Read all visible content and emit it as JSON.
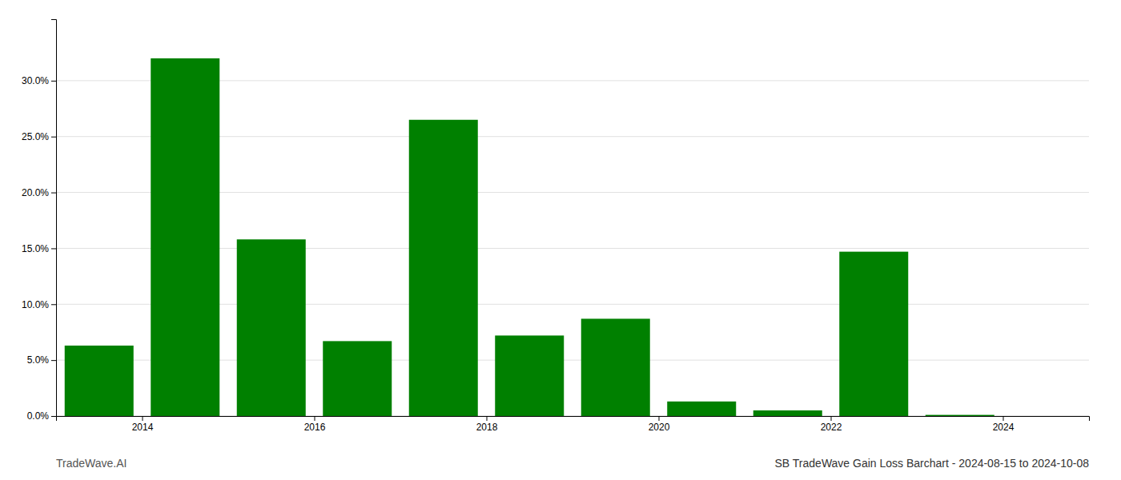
{
  "chart_data": {
    "type": "bar",
    "title": "SB TradeWave Gain Loss Barchart - 2024-08-15 to 2024-10-08",
    "annotations": [
      "TradeWave.AI"
    ],
    "x": [
      2014,
      2015,
      2016,
      2017,
      2018,
      2019,
      2020,
      2021,
      2022,
      2023,
      2024
    ],
    "values": [
      0.063,
      0.32,
      0.158,
      0.067,
      0.265,
      0.072,
      0.087,
      0.013,
      0.005,
      0.147,
      0.001
    ],
    "color": "#008000",
    "xlim": [
      2013.5,
      2025.5
    ],
    "xticks": [
      {
        "value": 2014.5,
        "label": "2014"
      },
      {
        "value": 2016.5,
        "label": "2016"
      },
      {
        "value": 2018.5,
        "label": "2018"
      },
      {
        "value": 2020.5,
        "label": "2020"
      },
      {
        "value": 2022.5,
        "label": "2022"
      },
      {
        "value": 2024.5,
        "label": "2024"
      }
    ],
    "ylim": [
      0,
      0.355
    ],
    "yticks": [
      {
        "value": 0.0,
        "label": "0.0%"
      },
      {
        "value": 0.05,
        "label": "5.0%"
      },
      {
        "value": 0.1,
        "label": "10.0%"
      },
      {
        "value": 0.15,
        "label": "15.0%"
      },
      {
        "value": 0.2,
        "label": "20.0%"
      },
      {
        "value": 0.25,
        "label": "25.0%"
      },
      {
        "value": 0.3,
        "label": "30.0%"
      }
    ],
    "grid": true
  }
}
